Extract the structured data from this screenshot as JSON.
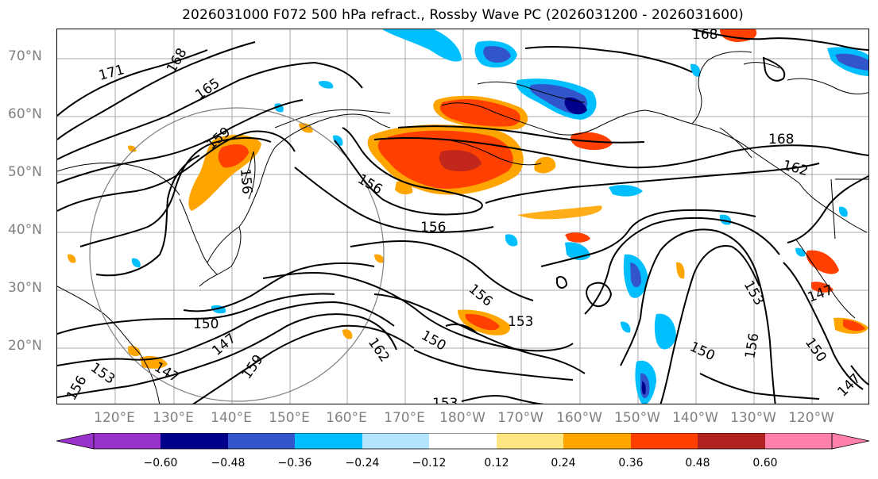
{
  "title": "2026031000 F072 500 hPa refract., Rossby Wave PC (2026031200 - 2026031600)",
  "lat_labels": [
    "70°N",
    "60°N",
    "50°N",
    "40°N",
    "30°N",
    "20°N"
  ],
  "lon_labels": [
    "120°E",
    "130°E",
    "140°E",
    "150°E",
    "160°E",
    "170°E",
    "180°W",
    "170°W",
    "160°W",
    "150°W",
    "140°W",
    "130°W",
    "120°W"
  ],
  "contour_labels": [
    "171",
    "168",
    "165",
    "159",
    "156",
    "156",
    "156",
    "153",
    "150",
    "150",
    "147",
    "147",
    "153",
    "156",
    "159",
    "162",
    "168",
    "168",
    "162",
    "153",
    "150",
    "156",
    "150",
    "147",
    "147",
    "153",
    "156"
  ],
  "colorbar": {
    "ticks": [
      "−0.60",
      "−0.48",
      "−0.36",
      "−0.24",
      "−0.12",
      "0.12",
      "0.24",
      "0.36",
      "0.48",
      "0.60"
    ],
    "colors": [
      "#9933cc",
      "#00008b",
      "#3355cc",
      "#00bfff",
      "#b3e5ff",
      "#ffffff",
      "#ffe680",
      "#ffa500",
      "#ff4000",
      "#b22222",
      "#ff80aa"
    ]
  }
}
